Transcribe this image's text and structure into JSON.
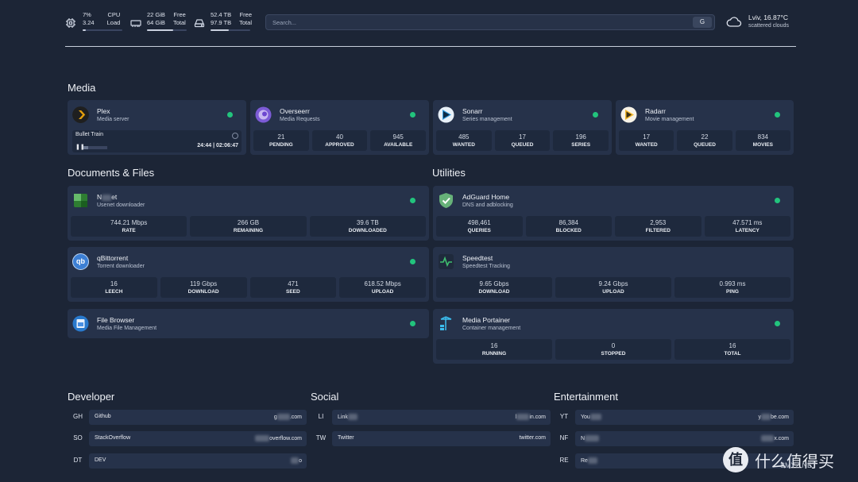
{
  "topbar": {
    "cpu": {
      "percent": "7%",
      "load": "3.24",
      "label1": "CPU",
      "label2": "Load",
      "bar_fraction": 0.07
    },
    "memory": {
      "free": "22 GiB",
      "total": "64 GiB",
      "label1": "Free",
      "label2": "Total",
      "bar_fraction": 0.66
    },
    "disk": {
      "free": "52.4 TB",
      "total": "97.9 TB",
      "label1": "Free",
      "label2": "Total",
      "bar_fraction": 0.46
    },
    "search": {
      "placeholder": "Search...",
      "button": "G"
    },
    "weather": {
      "location": "Lviv, 16.87°C",
      "condition": "scattered clouds"
    }
  },
  "media": {
    "title": "Media",
    "plex": {
      "name": "Plex",
      "desc": "Media server",
      "now_playing": "Bullet Train",
      "time": "24:44 | 02:06:47",
      "progress_fraction": 0.2
    },
    "overseerr": {
      "name": "Overseerr",
      "desc": "Media Requests",
      "metrics": [
        {
          "v": "21",
          "l": "PENDING"
        },
        {
          "v": "40",
          "l": "APPROVED"
        },
        {
          "v": "945",
          "l": "AVAILABLE"
        }
      ]
    },
    "sonarr": {
      "name": "Sonarr",
      "desc": "Series management",
      "metrics": [
        {
          "v": "485",
          "l": "WANTED"
        },
        {
          "v": "17",
          "l": "QUEUED"
        },
        {
          "v": "196",
          "l": "SERIES"
        }
      ]
    },
    "radarr": {
      "name": "Radarr",
      "desc": "Movie management",
      "metrics": [
        {
          "v": "17",
          "l": "WANTED"
        },
        {
          "v": "22",
          "l": "QUEUED"
        },
        {
          "v": "834",
          "l": "MOVIES"
        }
      ]
    }
  },
  "docs": {
    "title": "Documents & Files",
    "nzbget": {
      "name_start": "N",
      "name_end": "et",
      "desc": "Usenet downloader",
      "metrics": [
        {
          "v": "744.21 Mbps",
          "l": "RATE"
        },
        {
          "v": "266 GB",
          "l": "REMAINING"
        },
        {
          "v": "39.6 TB",
          "l": "DOWNLOADED"
        }
      ]
    },
    "qbittorrent": {
      "name": "qBittorrent",
      "logo": "qb",
      "desc": "Torrent downloader",
      "metrics": [
        {
          "v": "16",
          "l": "LEECH"
        },
        {
          "v": "119 Gbps",
          "l": "DOWNLOAD"
        },
        {
          "v": "471",
          "l": "SEED"
        },
        {
          "v": "618.52 Mbps",
          "l": "UPLOAD"
        }
      ]
    },
    "filebrowser": {
      "name": "File Browser",
      "desc": "Media File Management"
    }
  },
  "utilities": {
    "title": "Utilities",
    "adguard": {
      "name": "AdGuard Home",
      "desc": "DNS and adblocking",
      "metrics": [
        {
          "v": "498,461",
          "l": "QUERIES"
        },
        {
          "v": "86,384",
          "l": "BLOCKED"
        },
        {
          "v": "2,953",
          "l": "FILTERED"
        },
        {
          "v": "47.571 ms",
          "l": "LATENCY"
        }
      ]
    },
    "speedtest": {
      "name": "Speedtest",
      "desc": "Speedtest Tracking",
      "metrics": [
        {
          "v": "9.65 Gbps",
          "l": "DOWNLOAD"
        },
        {
          "v": "9.24 Gbps",
          "l": "UPLOAD"
        },
        {
          "v": "0.993 ms",
          "l": "PING"
        }
      ]
    },
    "portainer": {
      "name": "Media Portainer",
      "desc": "Container management",
      "metrics": [
        {
          "v": "16",
          "l": "RUNNING"
        },
        {
          "v": "0",
          "l": "STOPPED"
        },
        {
          "v": "16",
          "l": "TOTAL"
        }
      ]
    }
  },
  "developer": {
    "title": "Developer",
    "items": [
      {
        "abbr": "GH",
        "name": "Github",
        "url_start": "g",
        "url_end": ".com"
      },
      {
        "abbr": "SO",
        "name": "StackOverflow",
        "url_start": "",
        "url_end": "overflow.com"
      },
      {
        "abbr": "DT",
        "name": "DEV",
        "url_start": "",
        "url_end": "o"
      }
    ]
  },
  "social": {
    "title": "Social",
    "items": [
      {
        "abbr": "LI",
        "name": "Link",
        "url_start": "l",
        "url_end": "in.com"
      },
      {
        "abbr": "TW",
        "name": "Twitter",
        "url_start": "",
        "url_end": "twitter.com"
      }
    ]
  },
  "entertainment": {
    "title": "Entertainment",
    "items": [
      {
        "abbr": "YT",
        "name": "You",
        "url_start": "y",
        "url_end": "be.com"
      },
      {
        "abbr": "NF",
        "name": "N",
        "url_start": "",
        "url_end": "x.com"
      },
      {
        "abbr": "RE",
        "name": "Re",
        "url_start": "",
        "url_end": ""
      }
    ]
  },
  "watermark": {
    "glyph": "值",
    "text": "什么值得买",
    "sub": "SMYZ.NET"
  },
  "colors": {
    "background": "#1c2536",
    "card": "#26324a",
    "metric": "#1e293d",
    "status_online": "#22c47d"
  }
}
